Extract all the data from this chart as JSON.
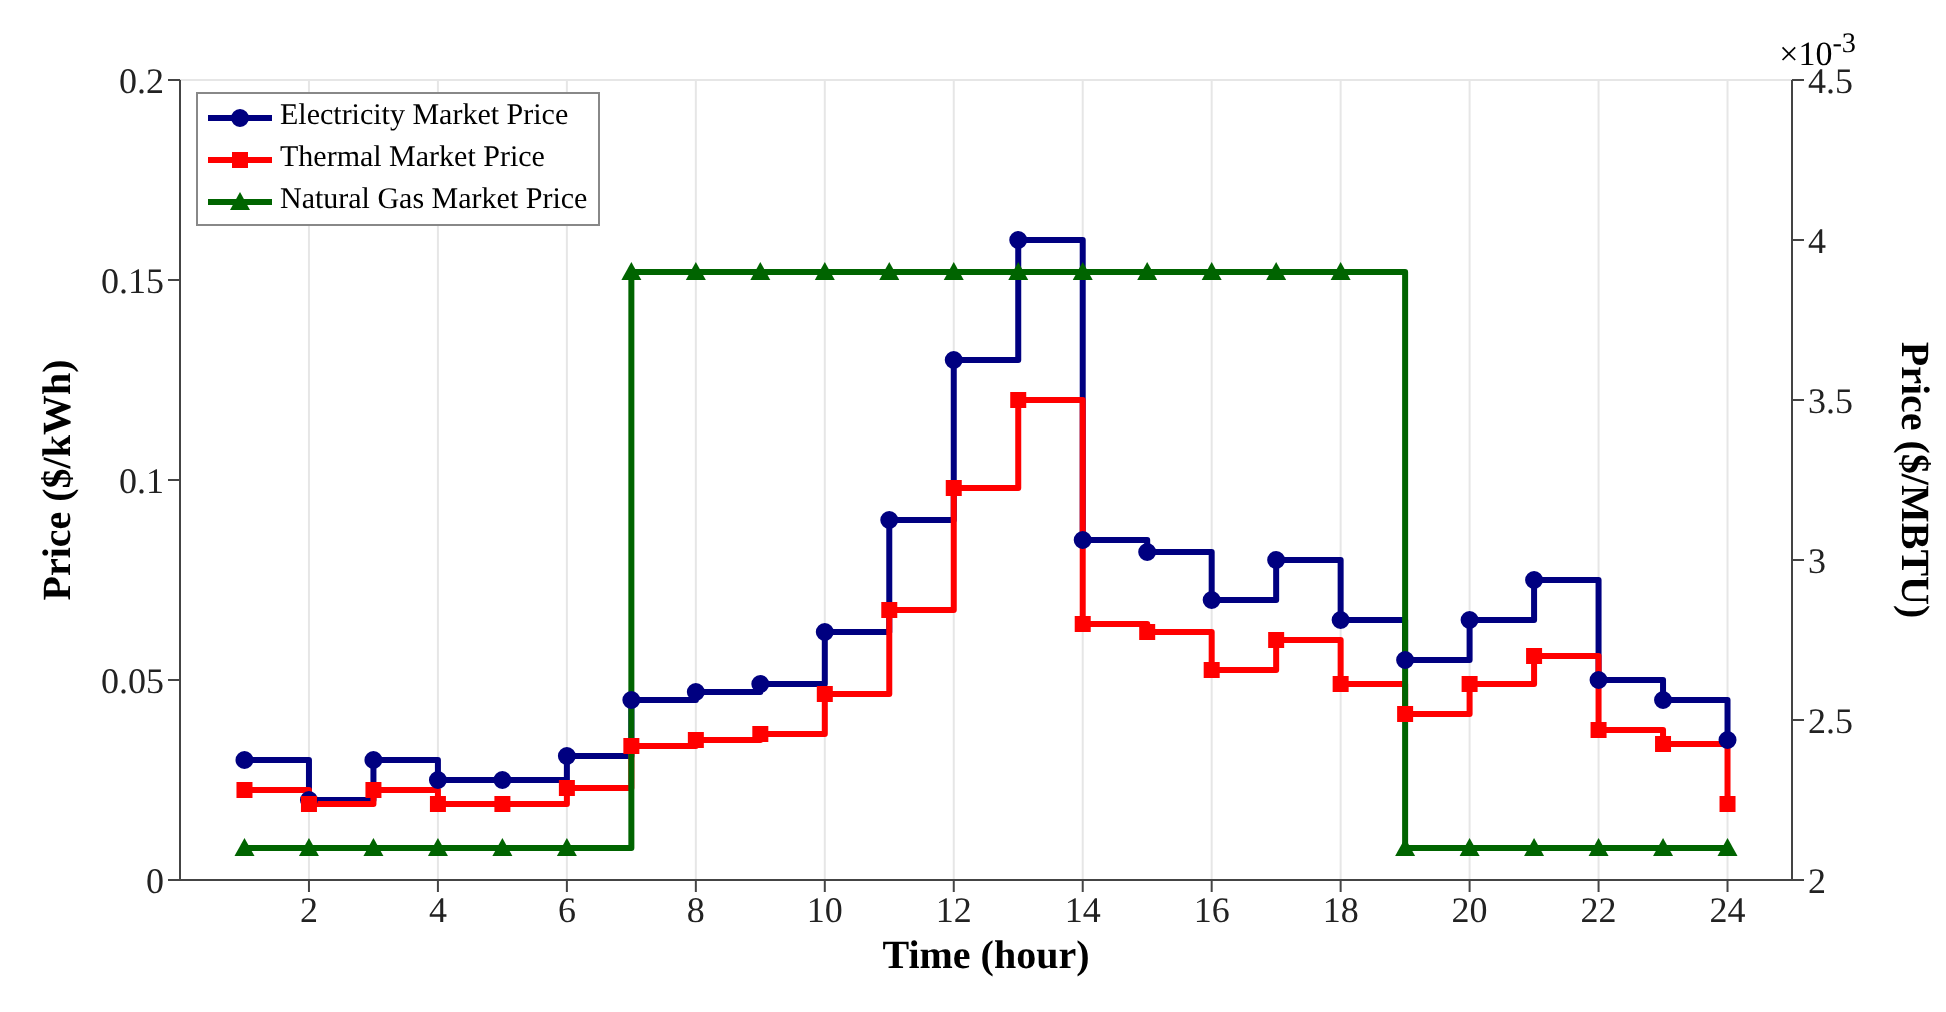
{
  "chart_data": {
    "type": "step",
    "xlabel": "Time (hour)",
    "ylabel": "Price ($/kWh)",
    "y2label": "Price ($/MBTU)",
    "x": [
      1,
      2,
      3,
      4,
      5,
      6,
      7,
      8,
      9,
      10,
      11,
      12,
      13,
      14,
      15,
      16,
      17,
      18,
      19,
      20,
      21,
      22,
      23,
      24
    ],
    "xlim": [
      0,
      25
    ],
    "xticks": [
      2,
      4,
      6,
      8,
      10,
      12,
      14,
      16,
      18,
      20,
      22,
      24
    ],
    "ylim": [
      0,
      0.2
    ],
    "yticks": [
      0,
      0.05,
      0.1,
      0.15,
      0.2
    ],
    "y2lim": [
      2,
      4.5
    ],
    "y2ticks": [
      2,
      2.5,
      3,
      3.5,
      4,
      4.5
    ],
    "annotations": [
      "×10$^{-3}$"
    ],
    "grid": true,
    "legend": "top left",
    "series": [
      {
        "name": "Electricity Market Price",
        "color": "#000080",
        "marker": "circle",
        "values": [
          0.03,
          0.02,
          0.03,
          0.025,
          0.025,
          0.031,
          0.045,
          0.047,
          0.049,
          0.062,
          0.09,
          0.13,
          0.16,
          0.085,
          0.082,
          0.07,
          0.08,
          0.065,
          0.055,
          0.065,
          0.075,
          0.05,
          0.045,
          0.035
        ]
      },
      {
        "name": "Thermal Market Price",
        "color": "#ff0000",
        "marker": "square",
        "values": [
          0.0225,
          0.019,
          0.0225,
          0.019,
          0.019,
          0.023,
          0.0335,
          0.035,
          0.0365,
          0.0465,
          0.0675,
          0.098,
          0.12,
          0.064,
          0.062,
          0.0525,
          0.06,
          0.049,
          0.0415,
          0.049,
          0.056,
          0.0375,
          0.034,
          0.019
        ]
      },
      {
        "name": "Natural Gas Market Price",
        "color": "#006400",
        "marker": "triangle",
        "axis": "y2",
        "values": [
          2.1,
          2.1,
          2.1,
          2.1,
          2.1,
          2.1,
          3.9,
          3.9,
          3.9,
          3.9,
          3.9,
          3.9,
          3.9,
          3.9,
          3.9,
          3.9,
          3.9,
          3.9,
          2.1,
          2.1,
          2.1,
          2.1,
          2.1,
          2.1
        ]
      }
    ]
  }
}
